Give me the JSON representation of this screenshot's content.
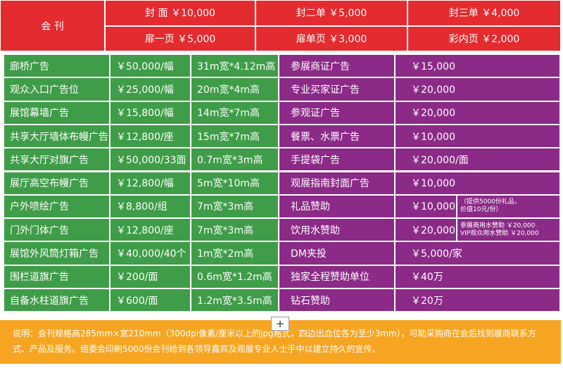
{
  "header": {
    "label": "会 刊",
    "rows": [
      [
        "封 面 ￥10,000",
        "封二单 ￥5,000",
        "封三单 ￥4,000"
      ],
      [
        "扉一页 ￥5,000",
        "扉单页 ￥3,000",
        "彩内页 ￥2,000"
      ]
    ]
  },
  "left_table": {
    "rows": [
      [
        "廊桥广告",
        "￥50,000/幅",
        "31m宽*4.12m高"
      ],
      [
        "观众入口广告位",
        "￥25,000/幅",
        "20m宽*4m高"
      ],
      [
        "展馆幕墙广告",
        "￥15,800/幅",
        "14m宽*7m高"
      ],
      [
        "共享大厅墙体布幔广告",
        "￥12,800/座",
        "15m宽*7m高"
      ],
      [
        "共享大厅对旗广告",
        "￥50,000/33面",
        "0.7m宽*3m高"
      ],
      [
        "展厅高空布幔广告",
        "￥12,800/幅",
        "5m宽*10m高"
      ],
      [
        "户外喷绘广告",
        "￥8,800/组",
        "7m宽*3m高"
      ],
      [
        "门外门体广告",
        "￥12,800/座",
        "7m宽*3m高"
      ],
      [
        "展馆外风筒灯箱广告",
        "￥40,000/40个",
        "1m宽*2m高"
      ],
      [
        "围栏道旗广告",
        "￥200/面",
        "0.6m宽*1.2m高"
      ],
      [
        "自备水柱道旗广告",
        "￥600/面",
        "1.2m宽*3.5m高"
      ]
    ]
  },
  "right_table": {
    "rows": [
      {
        "name": "参展商证广告",
        "price": "￥15,000"
      },
      {
        "name": "专业买家证广告",
        "price": "￥20,000"
      },
      {
        "name": "参观证广告",
        "price": "￥20,000"
      },
      {
        "name": "餐票、水票广告",
        "price": "￥10,000"
      },
      {
        "name": "手提袋广告",
        "price": "￥20,000/面"
      },
      {
        "name": "观展指南封面广告",
        "price": "￥10,000"
      },
      {
        "name": "礼品赞助",
        "price": "￥10,000",
        "note": [
          "（提供5000份礼品，",
          "价值10元/份）"
        ]
      },
      {
        "name": "饮用水赞助",
        "price": "￥20,000",
        "note": [
          "参展商用水赞助 ￥20,000",
          "VIP观众用水赞助 ￥20,000"
        ]
      },
      {
        "name": "DM夹投",
        "price": "￥5,000/家"
      },
      {
        "name": "独家全程赞助单位",
        "price": "￥40万"
      },
      {
        "name": "钻石赞助",
        "price": "￥20万"
      }
    ]
  },
  "footer": {
    "button": "+",
    "text": "说明：会刊规格高285mm×宽210mm（300dpi像素/厘米以上的jpg格式，四边出血位各为至少3mm），可助采购商在会后找到展商联系方式、产品及服务。组委会印刷5000份会刊给到各领导嘉宾及观展专业人士手中以建立持久的宣传。"
  }
}
